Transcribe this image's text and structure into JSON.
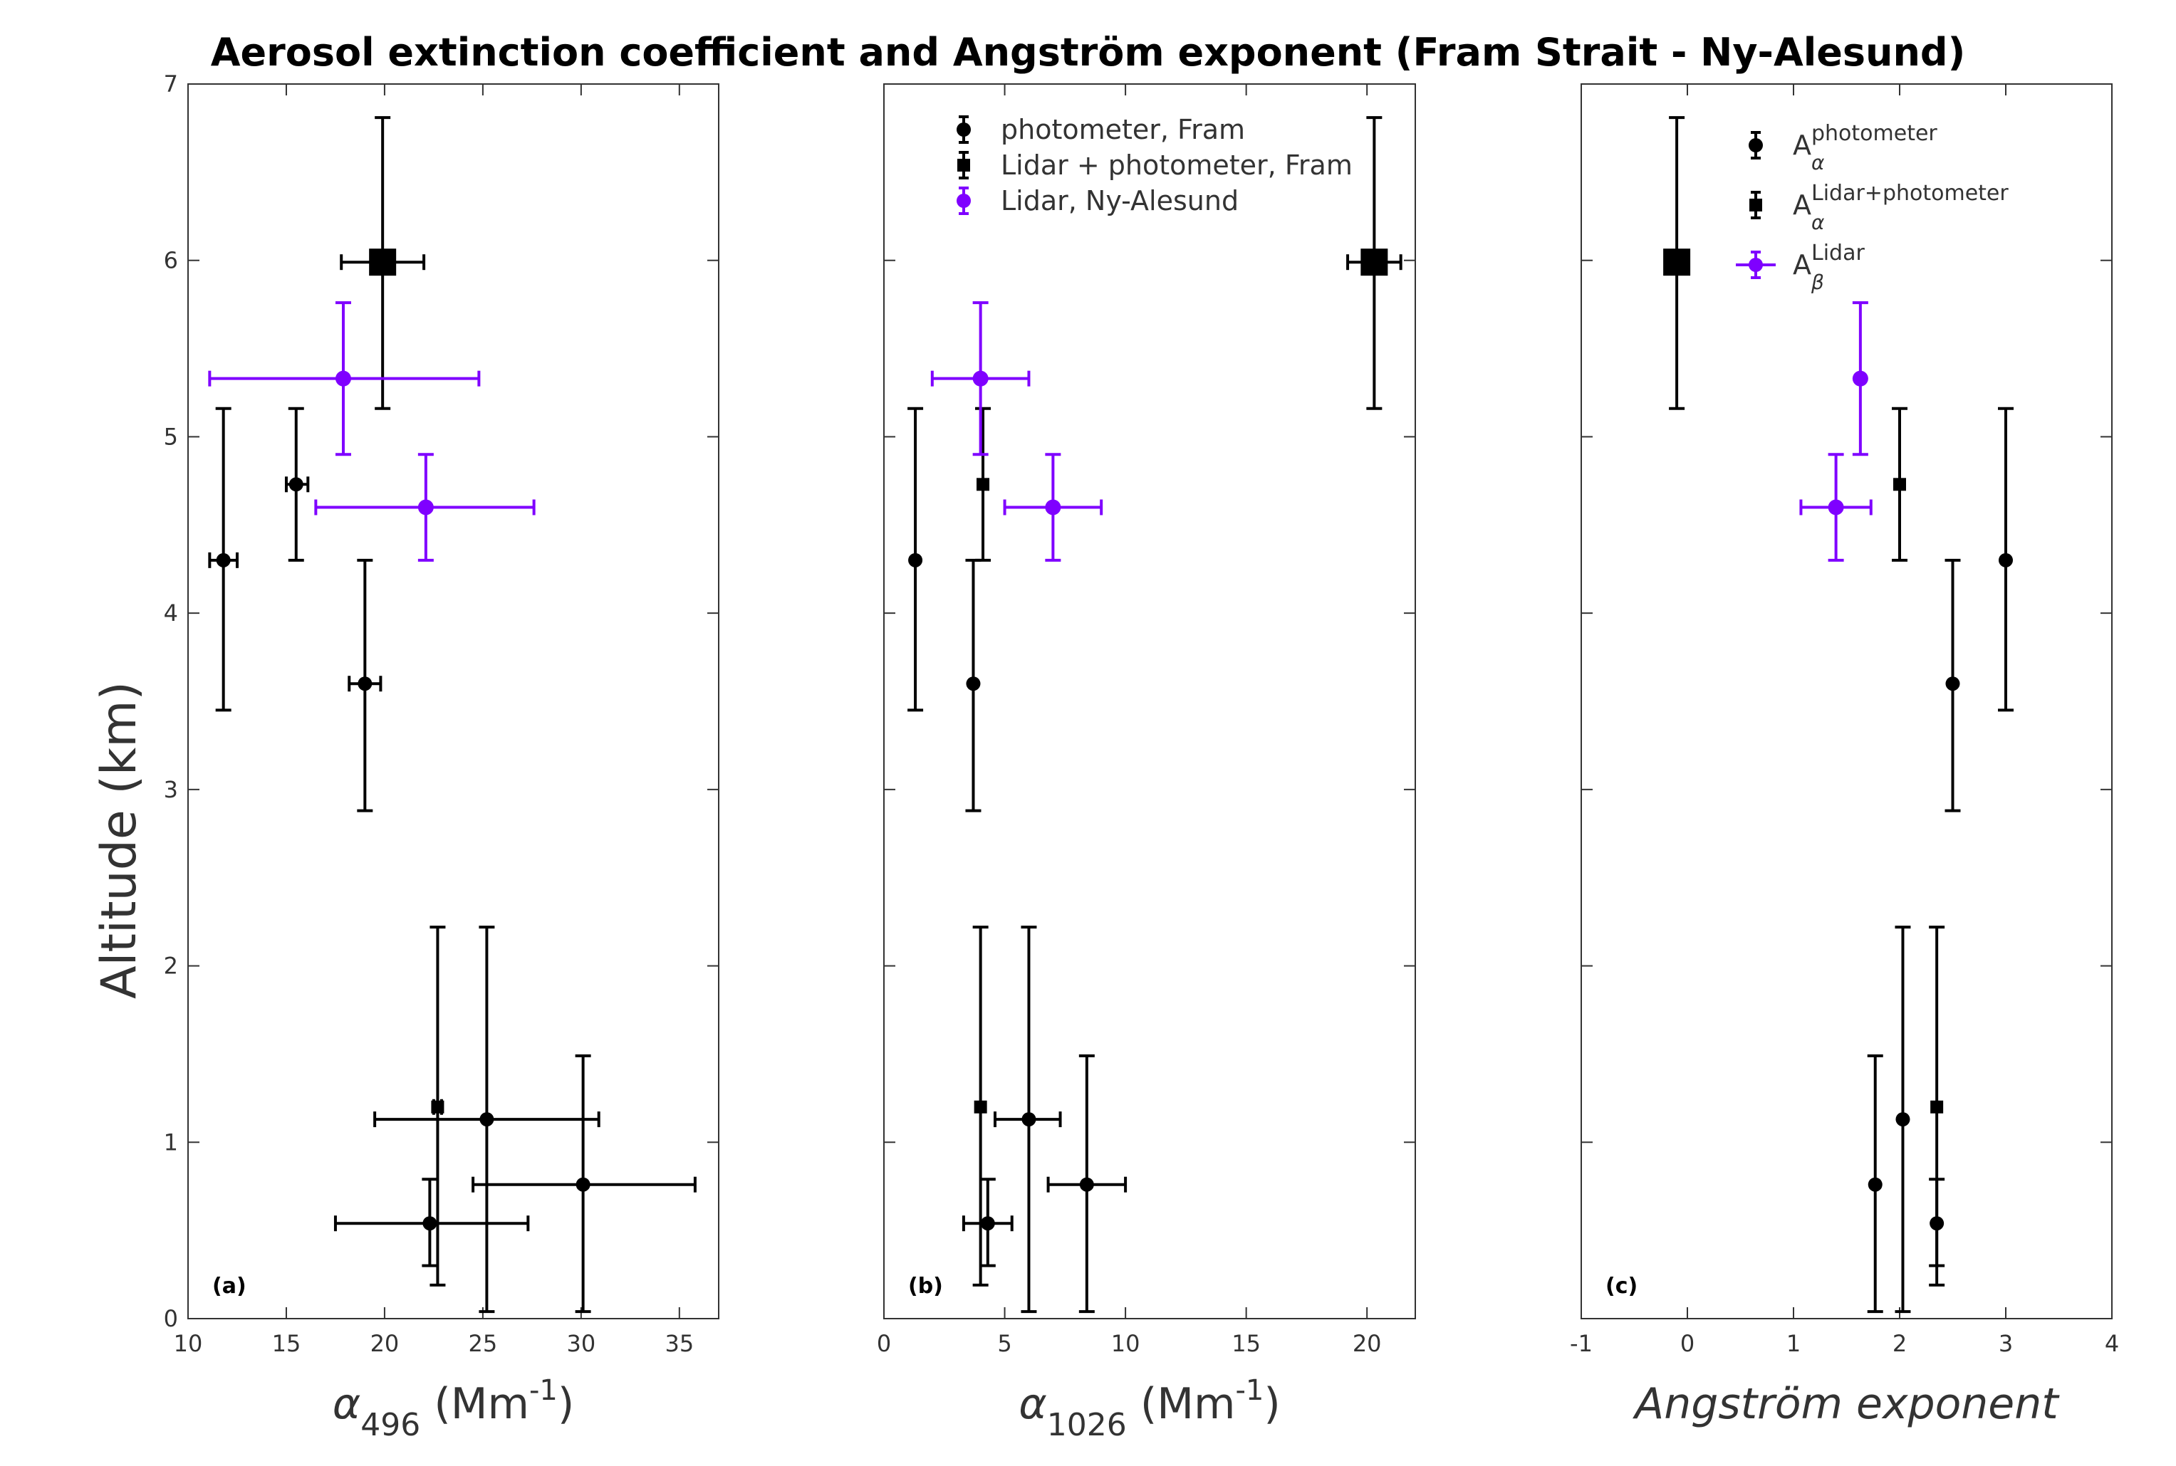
{
  "chart_data": {
    "title": "Aerosol extinction coefficient and Angström exponent (Fram Strait - Ny-Alesund)",
    "ylabel": "Altitude (km)",
    "colors": {
      "black": "#000000",
      "purple": "#7f00ff"
    },
    "panels": [
      {
        "id": "a",
        "panel_label": "(a)",
        "type": "scatter",
        "xlabel": {
          "main": "α",
          "sub": "496",
          "unit": " (Mm",
          "sup": "-1",
          "close": ")"
        },
        "xlim": [
          10,
          37
        ],
        "ylim": [
          0,
          7
        ],
        "xticks": [
          "10",
          "15",
          "20",
          "25",
          "30",
          "35"
        ],
        "xtick_values": [
          10,
          15,
          20,
          25,
          30,
          35
        ],
        "yticks": [
          "0",
          "1",
          "2",
          "3",
          "4",
          "5",
          "6",
          "7"
        ],
        "series": [
          {
            "name": "photometer, Fram",
            "marker": "circle",
            "color": "#000000",
            "points": [
              {
                "x": 11.8,
                "y": 4.3,
                "xlo": 11.1,
                "xhi": 12.5,
                "ylo": 3.45,
                "yhi": 5.16
              },
              {
                "x": 15.5,
                "y": 4.73,
                "xlo": 15.0,
                "xhi": 16.1,
                "ylo": 4.3,
                "yhi": 5.16
              },
              {
                "x": 19.0,
                "y": 3.6,
                "xlo": 18.2,
                "xhi": 19.8,
                "ylo": 2.88,
                "yhi": 4.3
              },
              {
                "x": 22.3,
                "y": 0.54,
                "xlo": 17.5,
                "xhi": 27.3,
                "ylo": 0.3,
                "yhi": 0.79
              },
              {
                "x": 25.2,
                "y": 1.13,
                "xlo": 19.5,
                "xhi": 30.9,
                "ylo": 0.04,
                "yhi": 2.22
              },
              {
                "x": 30.1,
                "y": 0.76,
                "xlo": 24.5,
                "xhi": 35.8,
                "ylo": 0.04,
                "yhi": 1.49
              }
            ]
          },
          {
            "name": "Lidar + photometer, Fram",
            "marker": "square",
            "color": "#000000",
            "points": [
              {
                "x": 22.7,
                "y": 1.2,
                "xlo": 22.5,
                "xhi": 22.9,
                "ylo": 0.19,
                "yhi": 2.22
              },
              {
                "x": 19.9,
                "y": 5.99,
                "xlo": 17.8,
                "xhi": 22.0,
                "ylo": 5.16,
                "yhi": 6.81,
                "size": "large"
              }
            ]
          },
          {
            "name": "Lidar, Ny-Alesund",
            "marker": "circle",
            "color": "#7f00ff",
            "points": [
              {
                "x": 17.9,
                "y": 5.33,
                "xlo": 11.1,
                "xhi": 24.8,
                "ylo": 4.9,
                "yhi": 5.76
              },
              {
                "x": 22.1,
                "y": 4.6,
                "xlo": 16.5,
                "xhi": 27.6,
                "ylo": 4.3,
                "yhi": 4.9
              }
            ]
          }
        ]
      },
      {
        "id": "b",
        "panel_label": "(b)",
        "type": "scatter",
        "xlabel": {
          "main": "α",
          "sub": "1026",
          "unit": " (Mm",
          "sup": "-1",
          "close": ")"
        },
        "xlim": [
          0,
          22
        ],
        "ylim": [
          0,
          7
        ],
        "xticks": [
          "0",
          "5",
          "10",
          "15",
          "20"
        ],
        "xtick_values": [
          0,
          5,
          10,
          15,
          20
        ],
        "series": [
          {
            "name": "photometer, Fram",
            "marker": "circle",
            "color": "#000000",
            "points": [
              {
                "x": 1.3,
                "y": 4.3,
                "xlo": 1.3,
                "xhi": 1.3,
                "ylo": 3.45,
                "yhi": 5.16
              },
              {
                "x": 3.7,
                "y": 3.6,
                "xlo": 3.7,
                "xhi": 3.7,
                "ylo": 2.88,
                "yhi": 4.3
              },
              {
                "x": 4.3,
                "y": 0.54,
                "xlo": 3.3,
                "xhi": 5.3,
                "ylo": 0.3,
                "yhi": 0.79
              },
              {
                "x": 6.0,
                "y": 1.13,
                "xlo": 4.6,
                "xhi": 7.3,
                "ylo": 0.04,
                "yhi": 2.22
              },
              {
                "x": 8.4,
                "y": 0.76,
                "xlo": 6.8,
                "xhi": 10.0,
                "ylo": 0.04,
                "yhi": 1.49
              }
            ]
          },
          {
            "name": "Lidar + photometer, Fram",
            "marker": "square",
            "color": "#000000",
            "points": [
              {
                "x": 4.1,
                "y": 4.73,
                "xlo": 4.1,
                "xhi": 4.1,
                "ylo": 4.3,
                "yhi": 5.16
              },
              {
                "x": 4.0,
                "y": 1.2,
                "xlo": 4.0,
                "xhi": 4.0,
                "ylo": 0.19,
                "yhi": 2.22
              },
              {
                "x": 20.3,
                "y": 5.99,
                "xlo": 19.2,
                "xhi": 21.4,
                "ylo": 5.16,
                "yhi": 6.81,
                "size": "large"
              }
            ]
          },
          {
            "name": "Lidar, Ny-Alesund",
            "marker": "circle",
            "color": "#7f00ff",
            "points": [
              {
                "x": 4.0,
                "y": 5.33,
                "xlo": 2.0,
                "xhi": 6.0,
                "ylo": 4.9,
                "yhi": 5.76
              },
              {
                "x": 7.0,
                "y": 4.6,
                "xlo": 5.0,
                "xhi": 9.0,
                "ylo": 4.3,
                "yhi": 4.9
              }
            ]
          }
        ],
        "legend": {
          "placement": "top-right",
          "entries": [
            {
              "label": "photometer, Fram",
              "marker": "circle",
              "color": "#000000"
            },
            {
              "label": "Lidar + photometer, Fram",
              "marker": "square",
              "color": "#000000"
            },
            {
              "label": "Lidar, Ny-Alesund",
              "marker": "circle",
              "color": "#7f00ff"
            }
          ]
        }
      },
      {
        "id": "c",
        "panel_label": "(c)",
        "type": "scatter",
        "xlabel": {
          "main": "Angström exponent"
        },
        "xlim": [
          -1,
          4
        ],
        "ylim": [
          0,
          7
        ],
        "xticks": [
          "-1",
          "0",
          "1",
          "2",
          "3",
          "4"
        ],
        "xtick_values": [
          -1,
          0,
          1,
          2,
          3,
          4
        ],
        "series": [
          {
            "name": "A_alpha photometer",
            "marker": "circle",
            "color": "#000000",
            "points": [
              {
                "x": 3.0,
                "y": 4.3,
                "ylo": 3.45,
                "yhi": 5.16
              },
              {
                "x": 2.5,
                "y": 3.6,
                "ylo": 2.88,
                "yhi": 4.3
              },
              {
                "x": 1.77,
                "y": 0.76,
                "ylo": 0.04,
                "yhi": 1.49
              },
              {
                "x": 2.03,
                "y": 1.13,
                "ylo": 0.04,
                "yhi": 2.22
              },
              {
                "x": 2.35,
                "y": 0.54,
                "ylo": 0.3,
                "yhi": 0.79
              }
            ]
          },
          {
            "name": "A_alpha Lidar+photometer",
            "marker": "square",
            "color": "#000000",
            "points": [
              {
                "x": 2.0,
                "y": 4.73,
                "ylo": 4.3,
                "yhi": 5.16
              },
              {
                "x": 2.35,
                "y": 1.2,
                "ylo": 0.19,
                "yhi": 2.22
              },
              {
                "x": -0.1,
                "y": 5.99,
                "ylo": 5.16,
                "yhi": 6.81,
                "size": "large"
              }
            ]
          },
          {
            "name": "A_beta Lidar",
            "marker": "circle",
            "color": "#7f00ff",
            "points": [
              {
                "x": 1.63,
                "y": 5.33,
                "ylo": 4.9,
                "yhi": 5.76
              },
              {
                "x": 1.4,
                "y": 4.6,
                "xlo": 1.07,
                "xhi": 1.73,
                "ylo": 4.3,
                "yhi": 4.9
              }
            ]
          }
        ],
        "legend": {
          "placement": "top-right",
          "entries": [
            {
              "label": "A",
              "sub": "α",
              "sup": "photometer",
              "marker": "circle",
              "color": "#000000"
            },
            {
              "label": "A",
              "sub": "α",
              "sup": "Lidar+photometer",
              "marker": "square",
              "color": "#000000"
            },
            {
              "label": "A",
              "sub": "β",
              "sup": "Lidar",
              "marker": "circle",
              "color": "#7f00ff"
            }
          ]
        }
      }
    ]
  }
}
